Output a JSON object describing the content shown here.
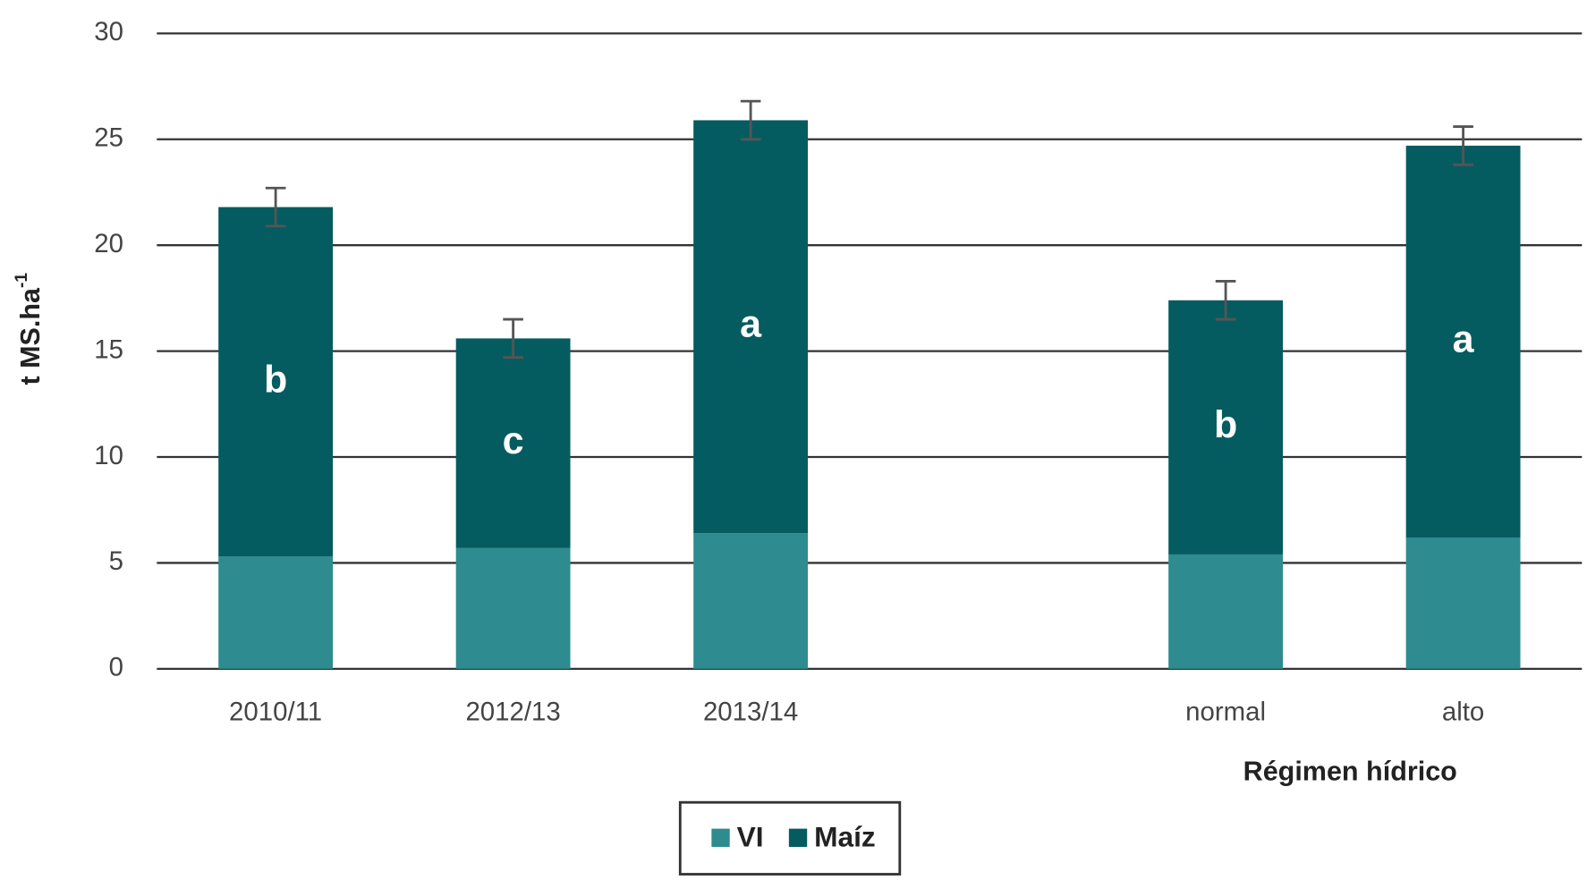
{
  "chart_data": {
    "type": "stacked_bar",
    "ylabel": "t MS.ha",
    "ylabel_superscript": "-1",
    "group_label": "Régimen hídrico",
    "categories": [
      "2010/11",
      "2012/13",
      "2013/14",
      null,
      "normal",
      "alto"
    ],
    "series": [
      {
        "name": "VI",
        "color": "#2e8b8f",
        "values": [
          5.3,
          5.7,
          6.4,
          null,
          5.4,
          6.2
        ]
      },
      {
        "name": "Maíz",
        "color": "#055c60",
        "values": [
          16.5,
          9.9,
          19.5,
          null,
          12.0,
          18.5
        ],
        "errors": [
          0.9,
          0.9,
          0.9,
          null,
          0.9,
          0.9
        ],
        "letters": [
          "b",
          "c",
          "a",
          null,
          "b",
          "a"
        ]
      }
    ],
    "ylim": [
      0,
      30
    ],
    "yticks": [
      0,
      5,
      10,
      15,
      20,
      25,
      30
    ],
    "grid": true
  }
}
